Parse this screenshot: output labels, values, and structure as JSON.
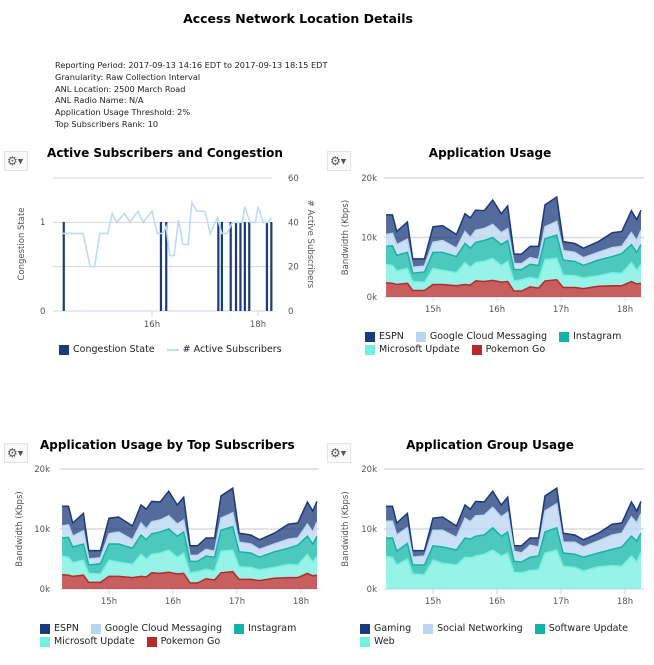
{
  "page": {
    "title": "Access Network Location Details",
    "info": [
      "Reporting Period: 2017-09-13 14:16 EDT to 2017-09-13 18:15 EDT",
      "Granularity: Raw Collection Interval",
      "ANL Location: 2500 March Road",
      "ANL Radio Name: N/A",
      "Application Usage Threshold: 2%",
      "Top Subscribers Rank: 10"
    ]
  },
  "colors": {
    "ESPN": "#1b3a7a",
    "Google Cloud Messaging": "#b9d6f2",
    "Instagram": "#12b5a5",
    "Microsoft Update": "#72efdf",
    "Pokemon Go": "#b52a2a",
    "Gaming": "#1b3a7a",
    "Social Networking": "#b9d6f2",
    "Software Update": "#12b5a5",
    "Web": "#72efdf",
    "Congestion State": "#1b3a7a",
    "# Active Subscribers": "#bcdcf5"
  },
  "chart_data": [
    {
      "type": "bar+line",
      "title": "Active Subscribers and Congestion",
      "ylabel": "Congestion State",
      "y2label": "# Active Subscribers",
      "yticks": [
        "0",
        "1"
      ],
      "y2ticks": [
        "0",
        "20",
        "40",
        "60"
      ],
      "y2lim": [
        0,
        60
      ],
      "xticks": [
        "16h",
        "18h"
      ],
      "grid": true,
      "legend": "bottom",
      "bars": {
        "name": "Congestion State",
        "x": [
          "14:20",
          "16:10",
          "16:16",
          "17:15",
          "17:19",
          "17:29",
          "17:35",
          "17:40",
          "17:45",
          "17:50",
          "18:10",
          "18:15"
        ],
        "values": [
          1,
          1,
          1,
          1,
          1,
          1,
          1,
          1,
          1,
          1,
          1,
          1
        ]
      },
      "line": {
        "name": "# Active Subscribers",
        "x": [
          "14:19",
          "14:42",
          "14:50",
          "14:55",
          "15:01",
          "15:10",
          "15:15",
          "15:20",
          "15:29",
          "15:35",
          "15:44",
          "15:50",
          "16:00",
          "16:06",
          "16:12",
          "16:16",
          "16:20",
          "16:25",
          "16:30",
          "16:35",
          "16:41",
          "16:45",
          "16:51",
          "17:00",
          "17:06",
          "17:14",
          "17:19",
          "17:25",
          "17:31",
          "17:42",
          "17:45",
          "17:51",
          "17:57",
          "18:00",
          "18:06",
          "18:11",
          "18:15"
        ],
        "values": [
          35,
          35,
          20,
          20,
          35,
          35,
          44,
          40,
          44,
          40,
          45,
          40,
          45,
          35,
          35,
          38,
          25,
          25,
          41,
          30,
          30,
          49,
          45,
          45,
          35,
          42,
          35,
          35,
          40,
          40,
          47,
          40,
          40,
          47,
          40,
          40,
          42
        ]
      }
    },
    {
      "type": "area",
      "stacked": true,
      "title": "Application Usage",
      "ylabel": "Bandwidth (Kbps)",
      "yticks": [
        "0k",
        "10k",
        "20k"
      ],
      "ylim": [
        0,
        20000
      ],
      "xticks": [
        "15h",
        "16h",
        "17h",
        "18h"
      ],
      "grid": true,
      "legend": "bottom",
      "x": [
        "14:16",
        "14:22",
        "14:26",
        "14:36",
        "14:41",
        "14:52",
        "15:00",
        "15:09",
        "15:22",
        "15:30",
        "15:35",
        "15:40",
        "15:48",
        "15:56",
        "16:04",
        "16:10",
        "16:16",
        "16:23",
        "16:31",
        "16:39",
        "16:45",
        "16:56",
        "17:02",
        "17:13",
        "17:21",
        "17:35",
        "17:48",
        "17:57",
        "18:06",
        "18:11",
        "18:15"
      ],
      "series": [
        {
          "name": "Pokemon Go",
          "values": [
            2400,
            2300,
            2100,
            2300,
            1100,
            1100,
            2100,
            2100,
            1900,
            2100,
            2000,
            2700,
            2600,
            2800,
            2500,
            2600,
            1000,
            1000,
            1700,
            1500,
            2700,
            2900,
            1600,
            1600,
            1400,
            1800,
            1900,
            1900,
            2600,
            2200,
            2300
          ]
        },
        {
          "name": "Microsoft Update",
          "values": [
            3100,
            3000,
            2300,
            2500,
            1500,
            1400,
            2700,
            2400,
            2200,
            3700,
            3000,
            3100,
            3400,
            3700,
            2800,
            3400,
            1700,
            1900,
            1600,
            1500,
            3600,
            3600,
            2100,
            2000,
            1800,
            1800,
            2200,
            2100,
            3200,
            2300,
            3200
          ]
        },
        {
          "name": "Instagram",
          "values": [
            3000,
            3300,
            2600,
            2700,
            1400,
            1700,
            2700,
            3000,
            2700,
            3200,
            3200,
            3400,
            3500,
            3500,
            3500,
            3500,
            1900,
            1700,
            2200,
            2300,
            3500,
            3900,
            2500,
            2400,
            2100,
            2600,
            2700,
            3300,
            3000,
            3000,
            3300
          ]
        },
        {
          "name": "Google Cloud Messaging",
          "values": [
            2000,
            2100,
            1800,
            2200,
            1000,
            1000,
            1700,
            2000,
            1400,
            2000,
            1800,
            2000,
            2000,
            2200,
            2000,
            2000,
            1000,
            1000,
            1100,
            1000,
            2000,
            2300,
            1600,
            1500,
            1300,
            1300,
            1500,
            1200,
            2000,
            2000,
            2400
          ]
        },
        {
          "name": "ESPN",
          "values": [
            3300,
            3100,
            2200,
            2900,
            1400,
            1200,
            2600,
            2500,
            2300,
            3000,
            3300,
            3400,
            3000,
            4100,
            3200,
            3800,
            1600,
            1600,
            1900,
            2200,
            3700,
            4100,
            1500,
            1500,
            1600,
            1800,
            2500,
            2500,
            3700,
            3500,
            3400
          ]
        }
      ],
      "legend_order": [
        "ESPN",
        "Google Cloud Messaging",
        "Instagram",
        "Microsoft Update",
        "Pokemon Go"
      ]
    },
    {
      "type": "area",
      "stacked": true,
      "title": "Application Usage by Top Subscribers",
      "ylabel": "Bandwidth (Kbps)",
      "yticks": [
        "0k",
        "10k",
        "20k"
      ],
      "ylim": [
        0,
        20000
      ],
      "xticks": [
        "15h",
        "16h",
        "17h",
        "18h"
      ],
      "grid": true,
      "legend": "bottom",
      "x": [
        "14:16",
        "14:22",
        "14:26",
        "14:36",
        "14:41",
        "14:52",
        "15:00",
        "15:09",
        "15:22",
        "15:30",
        "15:35",
        "15:40",
        "15:48",
        "15:56",
        "16:04",
        "16:10",
        "16:16",
        "16:23",
        "16:31",
        "16:39",
        "16:45",
        "16:56",
        "17:02",
        "17:13",
        "17:21",
        "17:35",
        "17:48",
        "17:57",
        "18:06",
        "18:11",
        "18:15"
      ],
      "series": [
        {
          "name": "Pokemon Go",
          "values": [
            2400,
            2300,
            2100,
            2300,
            1100,
            1100,
            2100,
            2100,
            1900,
            2100,
            2000,
            2700,
            2600,
            2800,
            2500,
            2600,
            1000,
            1000,
            1700,
            1500,
            2700,
            2900,
            1600,
            1600,
            1400,
            1800,
            1900,
            1900,
            2600,
            2200,
            2300
          ]
        },
        {
          "name": "Microsoft Update",
          "values": [
            3100,
            3000,
            2300,
            2500,
            1500,
            1400,
            2700,
            2400,
            2200,
            3700,
            3000,
            3100,
            3400,
            3700,
            2800,
            3400,
            1700,
            1900,
            1600,
            1500,
            3600,
            3600,
            2100,
            2000,
            1800,
            1800,
            2200,
            2100,
            3200,
            2300,
            3200
          ]
        },
        {
          "name": "Instagram",
          "values": [
            3000,
            3300,
            2600,
            2700,
            1400,
            1700,
            2700,
            3000,
            2700,
            3200,
            3200,
            3400,
            3500,
            3500,
            3500,
            3500,
            1900,
            1700,
            2200,
            2300,
            3500,
            3900,
            2500,
            2400,
            2100,
            2600,
            2700,
            3300,
            3000,
            3000,
            3300
          ]
        },
        {
          "name": "Google Cloud Messaging",
          "values": [
            2000,
            2100,
            1800,
            2200,
            1000,
            1000,
            1700,
            2000,
            1400,
            2000,
            1800,
            2000,
            2000,
            2200,
            2000,
            2000,
            1000,
            1000,
            1100,
            1000,
            2000,
            2300,
            1600,
            1500,
            1300,
            1300,
            1500,
            1200,
            2000,
            2000,
            2400
          ]
        },
        {
          "name": "ESPN",
          "values": [
            3300,
            3100,
            2200,
            2900,
            1400,
            1200,
            2600,
            2500,
            2300,
            3000,
            3300,
            3400,
            3000,
            4100,
            3200,
            3800,
            1600,
            1600,
            1900,
            2200,
            3700,
            4100,
            1500,
            1500,
            1600,
            1800,
            2500,
            2500,
            3700,
            3500,
            3400
          ]
        }
      ],
      "legend_order": [
        "ESPN",
        "Google Cloud Messaging",
        "Instagram",
        "Microsoft Update",
        "Pokemon Go"
      ]
    },
    {
      "type": "area",
      "stacked": true,
      "title": "Application Group Usage",
      "ylabel": "Bandwidth (Kbps)",
      "yticks": [
        "0k",
        "10k",
        "20k"
      ],
      "ylim": [
        0,
        20000
      ],
      "xticks": [
        "15h",
        "16h",
        "17h",
        "18h"
      ],
      "grid": true,
      "legend": "bottom",
      "x": [
        "14:16",
        "14:22",
        "14:26",
        "14:36",
        "14:41",
        "14:52",
        "15:00",
        "15:09",
        "15:22",
        "15:30",
        "15:35",
        "15:40",
        "15:48",
        "15:56",
        "16:04",
        "16:10",
        "16:16",
        "16:23",
        "16:31",
        "16:39",
        "16:45",
        "16:56",
        "17:02",
        "17:13",
        "17:21",
        "17:35",
        "17:48",
        "17:57",
        "18:06",
        "18:11",
        "18:15"
      ],
      "series": [
        {
          "name": "Web",
          "values": [
            5400,
            5300,
            4000,
            5000,
            2500,
            2400,
            4800,
            4300,
            4000,
            5300,
            5200,
            5500,
            5800,
            6500,
            5500,
            6000,
            2800,
            2700,
            3100,
            3200,
            6000,
            6500,
            3800,
            3600,
            3000,
            3700,
            3900,
            3800,
            5500,
            4500,
            6200
          ]
        },
        {
          "name": "Software Update",
          "values": [
            3100,
            3200,
            2300,
            2600,
            1500,
            1600,
            2400,
            2700,
            2500,
            3200,
            3100,
            3300,
            3200,
            3700,
            3300,
            3500,
            1800,
            1800,
            2200,
            2300,
            3500,
            3700,
            2200,
            2200,
            2300,
            2300,
            2700,
            3200,
            3300,
            3500,
            3100
          ]
        },
        {
          "name": "Social Networking",
          "values": [
            2800,
            2800,
            2700,
            2600,
            1300,
            1500,
            2600,
            2800,
            2100,
            3300,
            2900,
            3400,
            3300,
            3400,
            3200,
            3300,
            1700,
            1500,
            2000,
            1500,
            3500,
            4000,
            1800,
            2000,
            1700,
            2000,
            2400,
            2300,
            3200,
            3000,
            3300
          ]
        },
        {
          "name": "Gaming",
          "values": [
            2500,
            2500,
            2000,
            2400,
            1100,
            900,
            2000,
            2200,
            1900,
            2200,
            2100,
            2400,
            2200,
            2700,
            2000,
            2500,
            900,
            1200,
            1200,
            1500,
            2500,
            2600,
            1500,
            1200,
            1200,
            1300,
            1800,
            1700,
            2500,
            2000,
            2000
          ]
        }
      ],
      "legend_order": [
        "Gaming",
        "Social Networking",
        "Software Update",
        "Web"
      ]
    }
  ]
}
